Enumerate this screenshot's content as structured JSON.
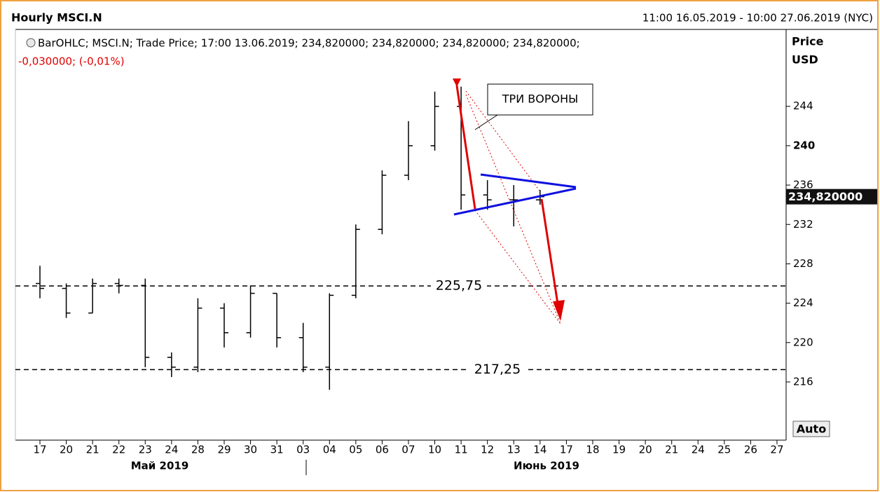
{
  "chart_data": {
    "type": "ohlc",
    "title": "Hourly MSCI.N",
    "range": "11:00 16.05.2019 - 10:00 27.06.2019 (NYC)",
    "info": "BarOHLC; MSCI.N; Trade Price; 17:00 13.06.2019; 234,820000; 234,820000; 234,820000; 234,820000;",
    "change": "-0,030000; (-0,01%)",
    "y_label": [
      "Price",
      "USD"
    ],
    "auto": "Auto",
    "months": [
      "Май 2019",
      "Июнь 2019"
    ],
    "annotation": "ТРИ ВОРОНЫ",
    "categories": [
      "17",
      "20",
      "21",
      "22",
      "23",
      "24",
      "28",
      "29",
      "30",
      "31",
      "03",
      "04",
      "05",
      "06",
      "07",
      "10",
      "11",
      "12",
      "13",
      "14",
      "17",
      "18",
      "19",
      "20",
      "21",
      "24",
      "25",
      "26",
      "27"
    ],
    "open": [
      226,
      225.5,
      223,
      226,
      225.8,
      218.5,
      217.5,
      223.5,
      221,
      225,
      220.5,
      217.5,
      224.8,
      231.5,
      237,
      240,
      244,
      235,
      234.5,
      234.5,
      null,
      null,
      null,
      null,
      null,
      null,
      null,
      null,
      null
    ],
    "high": [
      227.8,
      226,
      226.5,
      226.5,
      226.5,
      219,
      224.5,
      224,
      225.8,
      225,
      222,
      225,
      232,
      237.5,
      242.5,
      245.5,
      246,
      236.5,
      236,
      235.5,
      null,
      null,
      null,
      null,
      null,
      null,
      null,
      null,
      null
    ],
    "low": [
      224.5,
      222.5,
      223,
      225,
      217.5,
      216.5,
      217,
      219.5,
      220.5,
      219.5,
      217,
      215.2,
      224.5,
      231,
      236.5,
      239.5,
      233.5,
      233.5,
      231.8,
      234,
      null,
      null,
      null,
      null,
      null,
      null,
      null,
      null,
      null
    ],
    "close": [
      225.5,
      223,
      226,
      225.8,
      218.5,
      217.5,
      223.5,
      221,
      225,
      220.5,
      217.5,
      224.8,
      231.5,
      237,
      240,
      244,
      235,
      234.5,
      234.5,
      234.82,
      null,
      null,
      null,
      null,
      null,
      null,
      null,
      null,
      null
    ],
    "color": "#000000",
    "last_price": 234.82,
    "last_price_label": "234,820000",
    "levels": [
      225.75,
      217.25
    ],
    "level_labels": [
      "225,75",
      "217,25"
    ],
    "ylim": [
      210.3,
      251.6
    ],
    "yticks": [
      216,
      220,
      224,
      228,
      232,
      236,
      240,
      244
    ]
  }
}
